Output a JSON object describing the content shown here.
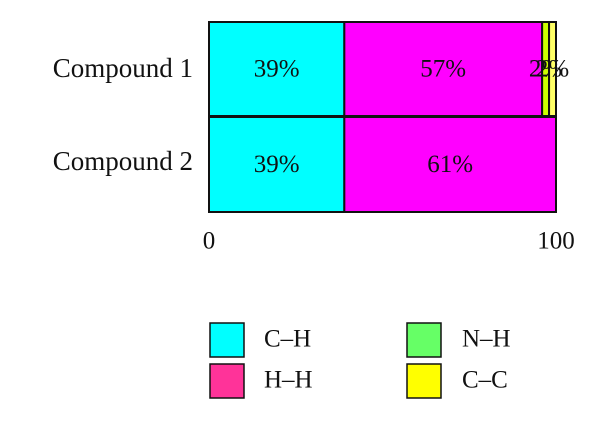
{
  "chart_data": {
    "type": "bar",
    "orientation": "horizontal",
    "stacked": true,
    "categories": [
      "Compound 1",
      "Compound 2"
    ],
    "series": [
      {
        "name": "C–H",
        "color": "#00ffff",
        "values": [
          39,
          39
        ]
      },
      {
        "name": "H–H",
        "color": "#ff00ff",
        "values": [
          57,
          61
        ]
      },
      {
        "name": "N–H",
        "color": "#ccff00",
        "values": [
          2,
          0
        ]
      },
      {
        "name": "C–C",
        "color": "#ffff66",
        "values": [
          2,
          0
        ]
      }
    ],
    "data_labels": [
      [
        "39%",
        "57%",
        "2%",
        "2%"
      ],
      [
        "39%",
        "61%",
        "",
        ""
      ]
    ],
    "xlim": [
      0,
      100
    ],
    "x_ticks": [
      "0",
      "100"
    ],
    "grid": false,
    "legend": {
      "placement": "bottom",
      "items": [
        {
          "label": "C–H",
          "color": "#00ffff"
        },
        {
          "label": "N–H",
          "color": "#66ff66"
        },
        {
          "label": "H–H",
          "color": "#ff3399"
        },
        {
          "label": "C–C",
          "color": "#ffff00"
        }
      ]
    }
  }
}
